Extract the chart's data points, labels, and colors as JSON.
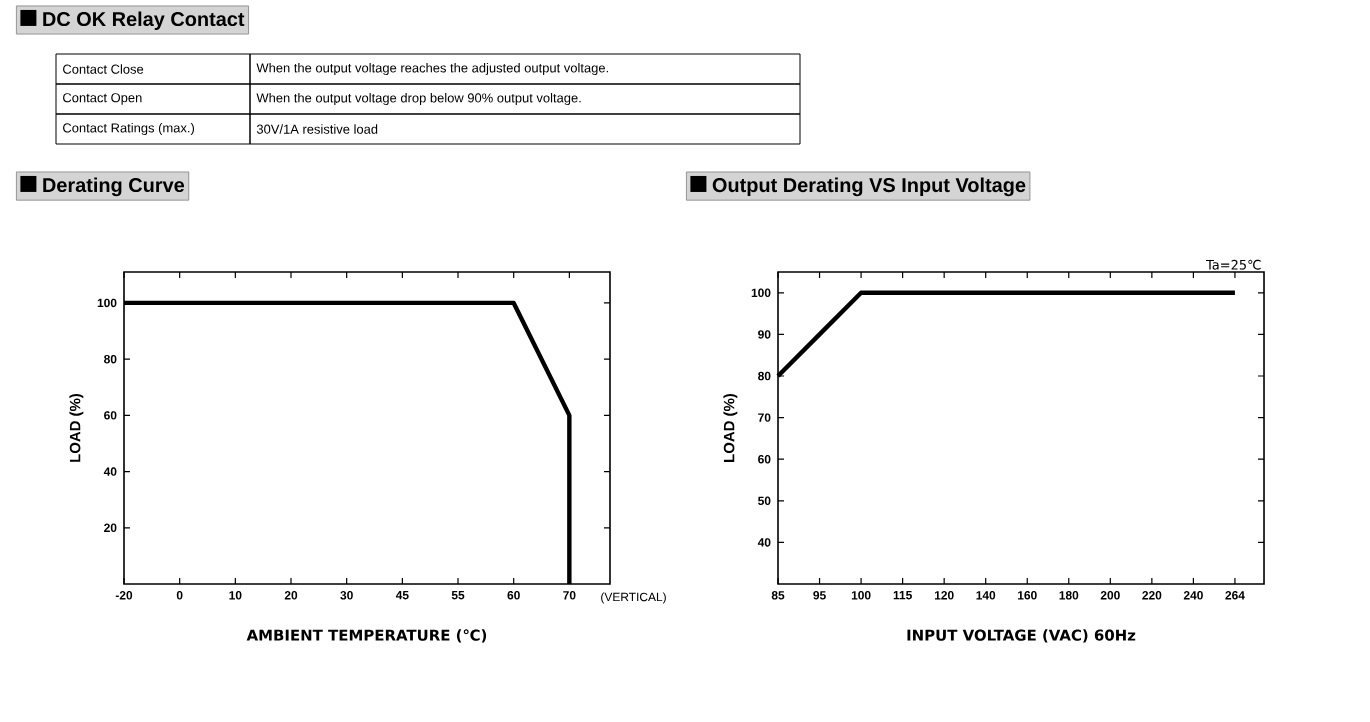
{
  "chart_data": [
    {
      "type": "other",
      "title": "DC OK Relay Contact",
      "annotations": [
        "Contact Close",
        "When the output voltage reaches the adjusted output voltage.",
        "Contact Open",
        "When the output voltage drop below 90% output voltage.",
        "Contact Ratings (max.)",
        "30V/1A resistive load"
      ]
    },
    {
      "type": "line",
      "title": "Derating Curve",
      "xlabel": "AMBIENT TEMPERATURE (℃)",
      "ylabel": "LOAD (%)",
      "categories": [
        "-20",
        "0",
        "10",
        "20",
        "30",
        "45",
        "55",
        "60",
        "70"
      ],
      "series": [
        {
          "color": "#000000",
          "x": [
            "-20",
            "60",
            "70",
            "70"
          ],
          "values": [
            100,
            100,
            60,
            0
          ]
        }
      ],
      "ylim": [
        0,
        111
      ],
      "yticks": [
        20,
        40,
        60,
        80,
        100
      ],
      "annotations": [
        "(VERTICAL)"
      ]
    },
    {
      "type": "line",
      "title": "Output Derating VS Input Voltage",
      "xlabel": "INPUT VOLTAGE (VAC) 60Hz",
      "ylabel": "LOAD (%)",
      "categories": [
        "85",
        "95",
        "100",
        "115",
        "120",
        "140",
        "160",
        "180",
        "200",
        "220",
        "240",
        "264"
      ],
      "series": [
        {
          "color": "#000000",
          "values": [
            80,
            90,
            100,
            100,
            100,
            100,
            100,
            100,
            100,
            100,
            100,
            100
          ]
        }
      ],
      "ylim": [
        30,
        105
      ],
      "yticks": [
        40,
        50,
        60,
        70,
        80,
        90,
        100
      ],
      "annotations": [
        "Ta=25℃"
      ]
    }
  ]
}
